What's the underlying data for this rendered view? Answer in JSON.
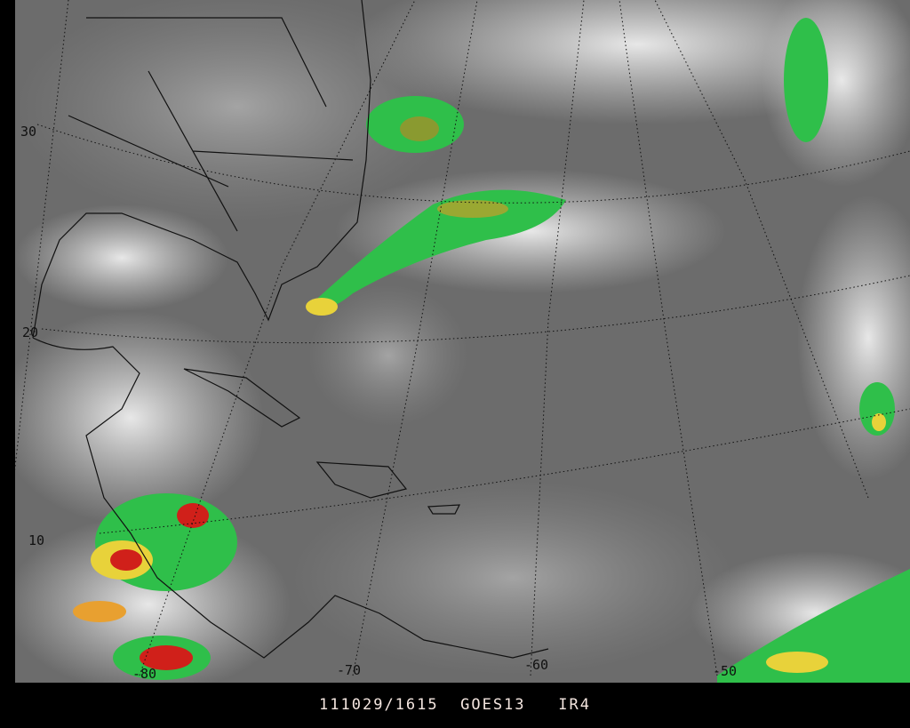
{
  "caption": {
    "datetime": "111029/1615",
    "satellite": "GOES13",
    "channel": "IR4"
  },
  "grid_labels": {
    "latitudes": [
      "30",
      "20",
      "10"
    ],
    "longitudes": [
      "-80",
      "-70",
      "-60",
      "-50"
    ]
  },
  "colors": {
    "background": "#000000",
    "caption_text": "#f4e6e0",
    "cold_cloud_green": "#2fbf4a",
    "cold_cloud_yellow": "#e8d23a",
    "cold_cloud_red": "#d0201a",
    "clear_gray": "#6a6a6a"
  }
}
